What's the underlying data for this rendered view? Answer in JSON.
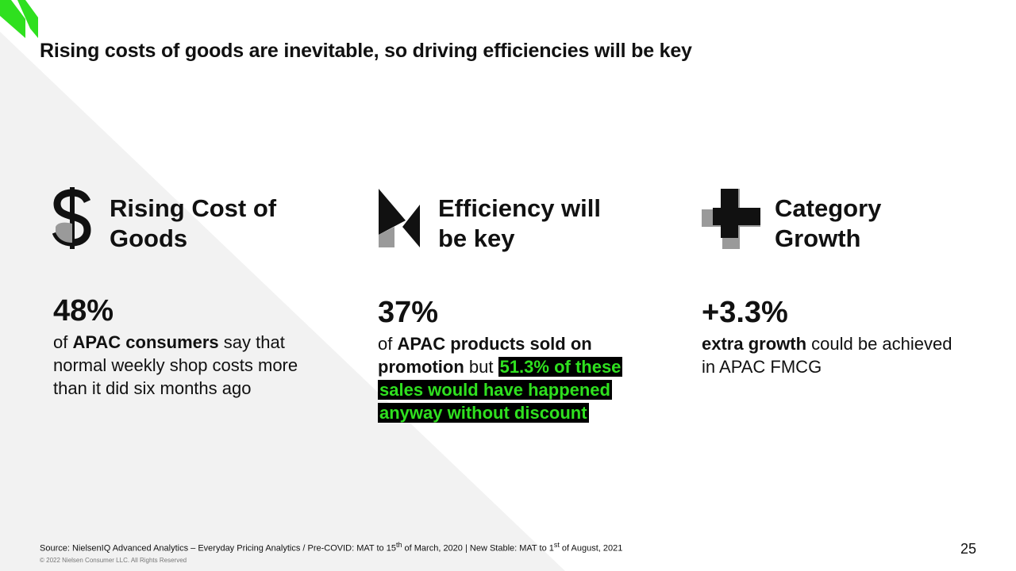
{
  "slide": {
    "title": "Rising costs of goods are inevitable, so driving efficiencies will be key",
    "page_number": "25"
  },
  "colors": {
    "accent_green": "#2fe01f",
    "highlight_bg": "#000000",
    "background_triangle": "#f2f2f2",
    "icon_gray": "#9a9a9a"
  },
  "columns": [
    {
      "icon": "dollar-icon",
      "heading_line1": "Rising Cost of",
      "heading_line2": "Goods",
      "stat_value": "48%",
      "text_1": "of ",
      "text_2": "APAC consumers",
      "text_3": " say that normal weekly shop costs more than it did six months ago"
    },
    {
      "icon": "arrow-icon",
      "heading_line1": "Efficiency will",
      "heading_line2": "be key",
      "stat_value": "37%",
      "text_1": "of ",
      "text_2": "APAC products sold on promotion",
      "text_3": " but ",
      "text_highlight": "51.3% of these sales would have happened anyway without discount"
    },
    {
      "icon": "plus-icon",
      "heading_line1": "Category",
      "heading_line2": "Growth",
      "stat_value": "+3.3%",
      "text_1": "extra growth",
      "text_2": " could be achieved in APAC FMCG"
    }
  ],
  "footer": {
    "source_1": "Source: NielsenIQ Advanced Analytics – Everyday Pricing Analytics  / Pre-COVID: MAT to 15",
    "sup_1": "th",
    "source_2": " of March, 2020 | New Stable: MAT to 1",
    "sup_2": "st",
    "source_3": "  of August, 2021",
    "copyright": "© 2022 Nielsen Consumer LLC. All Rights Reserved"
  }
}
